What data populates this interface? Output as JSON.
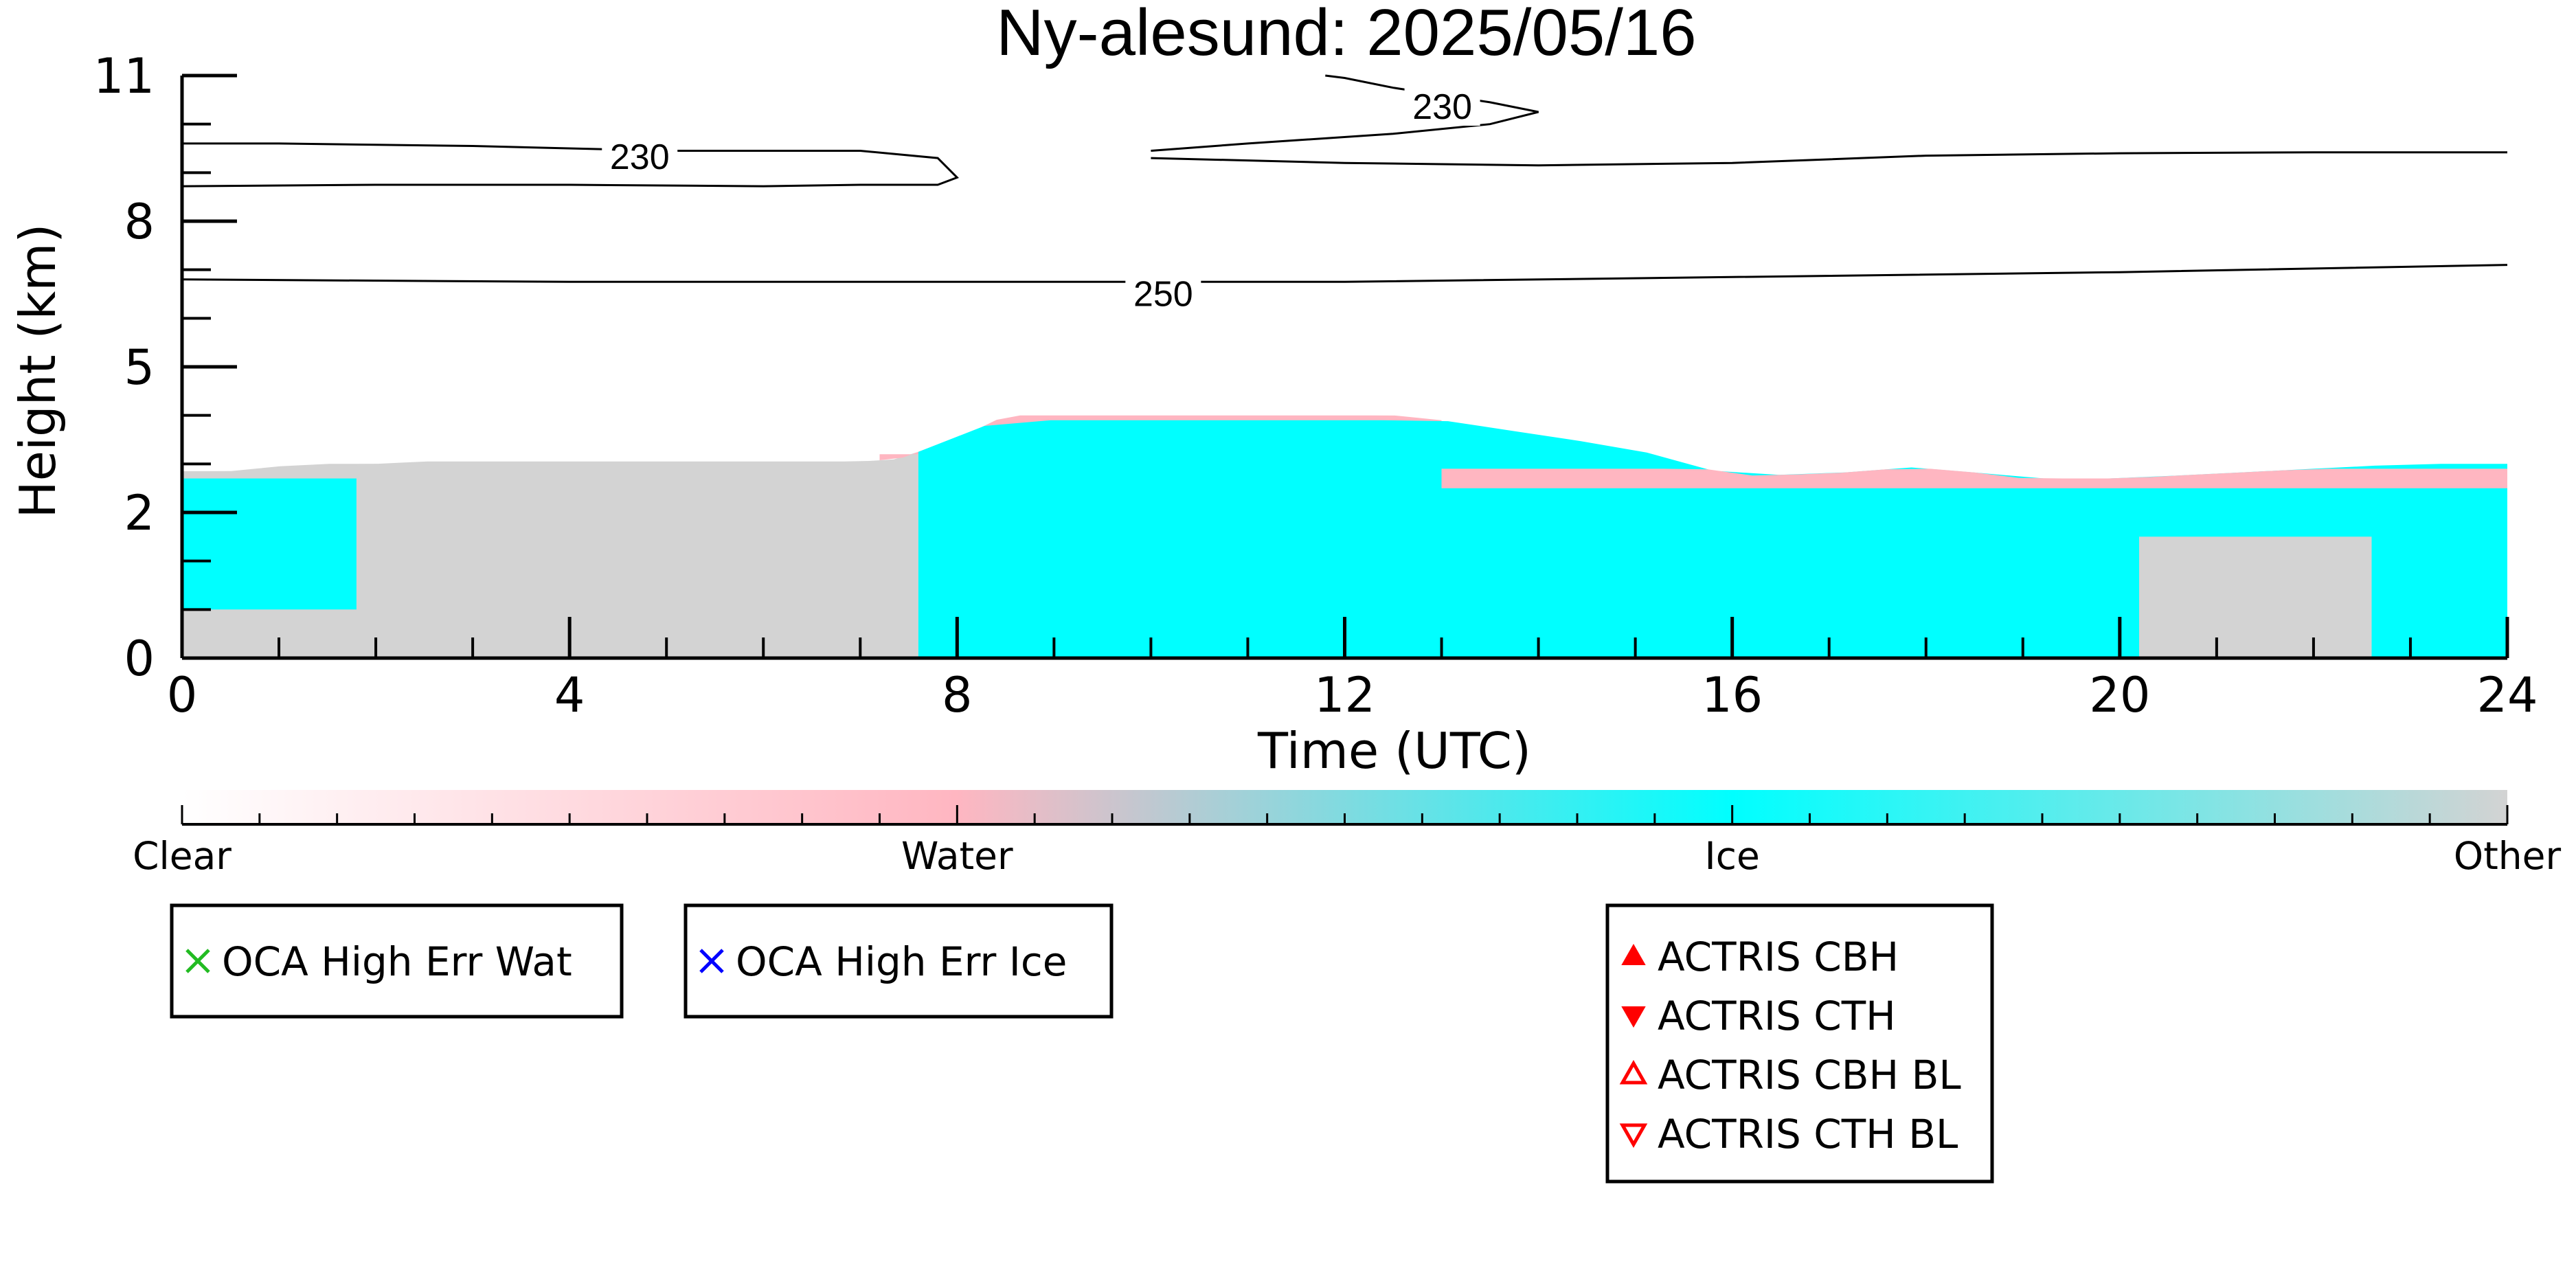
{
  "chart_data": {
    "type": "heatmap",
    "title": "Ny-alesund: 2025/05/16",
    "xlabel": "Time (UTC)",
    "ylabel": "Height (km)",
    "xlim": [
      0,
      24
    ],
    "ylim": [
      0,
      12
    ],
    "x_ticks": [
      0,
      4,
      8,
      12,
      16,
      20,
      24
    ],
    "y_ticks": [
      {
        "value": 0,
        "label": "0"
      },
      {
        "value": 3,
        "label": "2"
      },
      {
        "value": 6,
        "label": "5"
      },
      {
        "value": 9,
        "label": "8"
      },
      {
        "value": 12,
        "label": "11"
      }
    ],
    "colorbar": {
      "labels": [
        "Clear",
        "Water",
        "Ice",
        "Other"
      ],
      "colors": {
        "clear": "#ffffff",
        "water": "#ffb6c1",
        "ice": "#00ffff",
        "other": "#d3d3d3"
      }
    },
    "classification_profile": {
      "time": [
        0,
        0.5,
        1,
        1.5,
        2,
        2.5,
        3,
        4,
        5,
        6,
        6.5,
        7,
        7.4,
        7.8,
        8.2,
        8.5,
        9,
        10,
        11,
        12,
        13,
        14,
        15,
        16,
        17,
        18,
        19,
        20,
        21,
        22,
        23,
        24
      ],
      "cloud_top_km": [
        3.85,
        3.85,
        3.95,
        4.0,
        4.0,
        4.05,
        4.05,
        4.05,
        4.05,
        4.05,
        4.05,
        4.05,
        4.1,
        4.4,
        4.7,
        5.0,
        5.25,
        5.2,
        5.2,
        5.1,
        4.9,
        4.6,
        4.3,
        3.75,
        3.8,
        3.95,
        3.7,
        3.7,
        3.8,
        3.9,
        4.0,
        4.0
      ]
    },
    "regions": [
      {
        "class": "other",
        "x": [
          0,
          7.6
        ],
        "note": "low cloud below top"
      },
      {
        "class": "ice",
        "x": [
          0,
          1.8
        ],
        "y_km": [
          1.0,
          3.7
        ]
      },
      {
        "class": "water",
        "x": [
          7.2,
          13
        ],
        "y_km": [
          4.2,
          5.0
        ]
      },
      {
        "class": "ice",
        "x": [
          7.6,
          24
        ],
        "y_km": [
          0,
          4.9
        ]
      },
      {
        "class": "water",
        "x": [
          13,
          24
        ],
        "y_km": [
          3.5,
          3.9
        ]
      },
      {
        "class": "other",
        "x": [
          20.2,
          22.6
        ],
        "y_km": [
          0,
          2.5
        ]
      }
    ],
    "contours": [
      {
        "level_label": "230",
        "segments": [
          {
            "time": [
              0,
              1,
              3,
              5,
              7,
              7.8,
              8.0,
              7.8,
              7,
              6,
              4,
              2,
              0
            ],
            "height_km": [
              10.6,
              10.6,
              10.55,
              10.45,
              10.45,
              10.3,
              9.9,
              9.75,
              9.75,
              9.72,
              9.75,
              9.75,
              9.72
            ]
          },
          {
            "time": [
              10,
              11,
              12.5,
              13.5,
              14.0,
              13.5,
              12.5,
              12.0,
              11.8
            ],
            "height_km": [
              10.45,
              10.6,
              10.8,
              11.0,
              11.25,
              11.45,
              11.75,
              11.95,
              12.0
            ]
          },
          {
            "time": [
              10,
              12,
              14,
              16,
              18,
              20,
              22,
              24
            ],
            "height_km": [
              10.3,
              10.2,
              10.15,
              10.2,
              10.35,
              10.4,
              10.42,
              10.42
            ]
          }
        ]
      },
      {
        "level_label": "250",
        "segments": [
          {
            "time": [
              0,
              4,
              8,
              12,
              16,
              20,
              24
            ],
            "height_km": [
              7.8,
              7.75,
              7.75,
              7.75,
              7.85,
              7.95,
              8.1
            ]
          }
        ]
      }
    ]
  },
  "legends": [
    {
      "items": [
        {
          "label": "OCA High Err Wat",
          "marker": "x",
          "color": "#22bb22"
        }
      ]
    },
    {
      "items": [
        {
          "label": "OCA High Err Ice",
          "marker": "x",
          "color": "#0000ff"
        }
      ]
    },
    {
      "items": [
        {
          "label": "ACTRIS CBH",
          "marker": "triangle-up-filled",
          "color": "#ff0000"
        },
        {
          "label": "ACTRIS CTH",
          "marker": "triangle-down-filled",
          "color": "#ff0000"
        },
        {
          "label": "ACTRIS CBH BL",
          "marker": "triangle-up-open",
          "color": "#ff0000"
        },
        {
          "label": "ACTRIS CTH BL",
          "marker": "triangle-down-open",
          "color": "#ff0000"
        }
      ]
    }
  ]
}
